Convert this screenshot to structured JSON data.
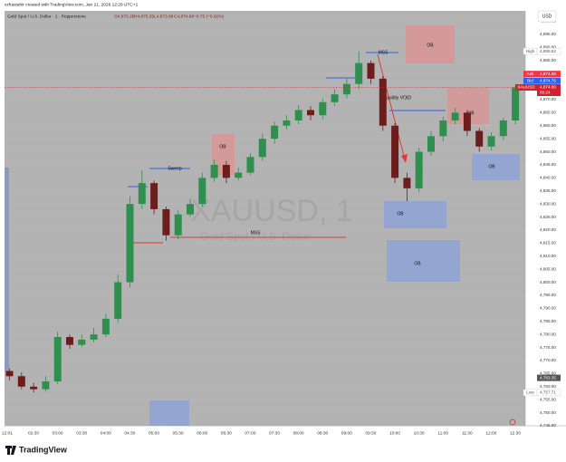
{
  "header": {
    "credit": "xzhastahir created with TradingView.com, Jan 21, 2026 12:29 UTC+1",
    "brand": "TradingView"
  },
  "chart_data": {
    "type": "candlestick",
    "title": "Gold Spot / U.S. Dollar · 1 · Pepperstone",
    "ohlc_legend": [
      "O4,875.25",
      "H4,875.35",
      "L4,873.99",
      "C4,874.66",
      "−0.75 (−0.02%)"
    ],
    "watermark": "XAUUSD, 1",
    "watermark_subtitle": "Gold Spot / U.S. Dollar",
    "currency": "USD",
    "up_color": "#2f8f4e",
    "down_color": "#6e1d1d",
    "x": [
      "02:00",
      "02:15",
      "02:30",
      "02:45",
      "03:00",
      "03:15",
      "03:30",
      "03:45",
      "04:00",
      "04:15",
      "04:30",
      "04:45",
      "05:00",
      "05:15",
      "05:30",
      "05:45",
      "06:00",
      "06:15",
      "06:30",
      "06:45",
      "07:00",
      "07:15",
      "07:30",
      "07:45",
      "08:00",
      "08:15",
      "08:30",
      "08:45",
      "09:00",
      "09:15",
      "09:30",
      "09:45",
      "10:00",
      "10:15",
      "10:30",
      "10:45",
      "11:00",
      "11:15",
      "11:30",
      "11:45",
      "12:00",
      "12:15",
      "12:30"
    ],
    "open": [
      4766,
      4764,
      4760,
      4759,
      4762,
      4779,
      4776,
      4778,
      4780,
      4786,
      4800,
      4830,
      4838,
      4828,
      4818,
      4826,
      4830,
      4840,
      4845,
      4840,
      4842,
      4848,
      4855,
      4860,
      4862,
      4866,
      4864,
      4869,
      4872,
      4876,
      4884,
      4878,
      4860,
      4840,
      4836,
      4850,
      4856,
      4862,
      4865,
      4858,
      4852,
      4856,
      4862
    ],
    "high": [
      4767,
      4765.5,
      4761.5,
      4764,
      4781,
      4780,
      4780,
      4782.5,
      4788,
      4803,
      4833,
      4843,
      4839,
      4829,
      4827.5,
      4832,
      4842,
      4847,
      4846.5,
      4844,
      4849.5,
      4857,
      4861.5,
      4864,
      4868,
      4867.5,
      4870.5,
      4874,
      4878,
      4888.52,
      4885,
      4879,
      4861,
      4842,
      4851.5,
      4858,
      4863.5,
      4867,
      4866,
      4859,
      4857.5,
      4863,
      4875.5
    ],
    "low": [
      4762.5,
      4759,
      4757.71,
      4758,
      4761,
      4774.5,
      4775,
      4777,
      4779,
      4784.5,
      4798,
      4828,
      4826,
      4816,
      4816.5,
      4825,
      4829,
      4838.5,
      4838,
      4839,
      4841,
      4846.5,
      4853,
      4858.5,
      4860.5,
      4862,
      4862.5,
      4867.5,
      4870.5,
      4874,
      4876,
      4858,
      4838,
      4831,
      4834.5,
      4848.5,
      4854,
      4860.5,
      4856,
      4850,
      4850.5,
      4854.5,
      4860.5
    ],
    "close": [
      4764,
      4760,
      4759,
      4762,
      4779,
      4776,
      4778,
      4780,
      4786,
      4800,
      4830,
      4838,
      4828,
      4818,
      4826,
      4830,
      4840,
      4845,
      4840,
      4842,
      4848,
      4855,
      4860,
      4862,
      4866,
      4864,
      4869,
      4872,
      4876,
      4884,
      4878,
      4860,
      4840,
      4836,
      4850,
      4856,
      4862,
      4865,
      4858,
      4852,
      4856,
      4862,
      4874.66
    ],
    "ylim": [
      4745,
      4904
    ],
    "yticks": [
      {
        "value": 4745,
        "label": "4,745.00"
      },
      {
        "value": 4750,
        "label": "4,750.00"
      },
      {
        "value": 4755,
        "label": "4,755.00"
      },
      {
        "value": 4760,
        "label": "4,760.00"
      },
      {
        "value": 4765,
        "label": "4,765.00"
      },
      {
        "value": 4770,
        "label": "4,770.00"
      },
      {
        "value": 4775,
        "label": "4,775.00"
      },
      {
        "value": 4780,
        "label": "4,780.00"
      },
      {
        "value": 4785,
        "label": "4,785.00"
      },
      {
        "value": 4790,
        "label": "4,790.00"
      },
      {
        "value": 4795,
        "label": "4,795.00"
      },
      {
        "value": 4800,
        "label": "4,800.00"
      },
      {
        "value": 4805,
        "label": "4,805.00"
      },
      {
        "value": 4810,
        "label": "4,810.00"
      },
      {
        "value": 4815,
        "label": "4,815.00"
      },
      {
        "value": 4820,
        "label": "4,820.00"
      },
      {
        "value": 4825,
        "label": "4,825.00"
      },
      {
        "value": 4830,
        "label": "4,830.00"
      },
      {
        "value": 4835,
        "label": "4,835.00"
      },
      {
        "value": 4840,
        "label": "4,840.00"
      },
      {
        "value": 4845,
        "label": "4,845.00"
      },
      {
        "value": 4850,
        "label": "4,850.00"
      },
      {
        "value": 4855,
        "label": "4,855.00"
      },
      {
        "value": 4860,
        "label": "4,860.00"
      },
      {
        "value": 4865,
        "label": "4,865.00"
      },
      {
        "value": 4870,
        "label": "4,870.00"
      },
      {
        "value": 4875,
        "label": "4,875.00"
      },
      {
        "value": 4880,
        "label": "4,880.00"
      },
      {
        "value": 4885,
        "label": "4,885.00"
      },
      {
        "value": 4890,
        "label": "4,890.00"
      },
      {
        "value": 4895,
        "label": "4,895.00"
      },
      {
        "value": 4900,
        "label": "4,900.00"
      }
    ],
    "xtick_labels": [
      "12:01",
      "02:30",
      "03:00",
      "03:30",
      "04:00",
      "04:30",
      "05:00",
      "05:30",
      "06:00",
      "06:30",
      "07:00",
      "07:30",
      "08:00",
      "08:30",
      "09:00",
      "09:30",
      "10:00",
      "10:30",
      "11:00",
      "11:30",
      "12:00",
      "12:30"
    ],
    "markers": [
      {
        "name": "High",
        "value": 4888.52,
        "label": "4,888.52",
        "color": "#ffffff"
      },
      {
        "name": "Ask",
        "value": 4874.95,
        "label": "4,874.95",
        "color": "#f23645"
      },
      {
        "name": "Bid",
        "value": 4874.75,
        "label": "4,874.75",
        "color": "#2962ff"
      },
      {
        "name": "XAUUSD",
        "value": 4874.66,
        "label": "4,874.66",
        "countdown": "00:24",
        "color": "#d1212f"
      },
      {
        "name": "",
        "value": 4763.35,
        "label": "4,763.35",
        "color": "#555555"
      },
      {
        "name": "Low",
        "value": 4757.71,
        "label": "4,757.71",
        "color": "#ffffff"
      }
    ],
    "annotations": [
      "OB",
      "OB",
      "OB",
      "OB",
      "OB",
      "OB",
      "Sweep",
      "MSS",
      "MSS",
      "Liquidity VOID"
    ]
  }
}
